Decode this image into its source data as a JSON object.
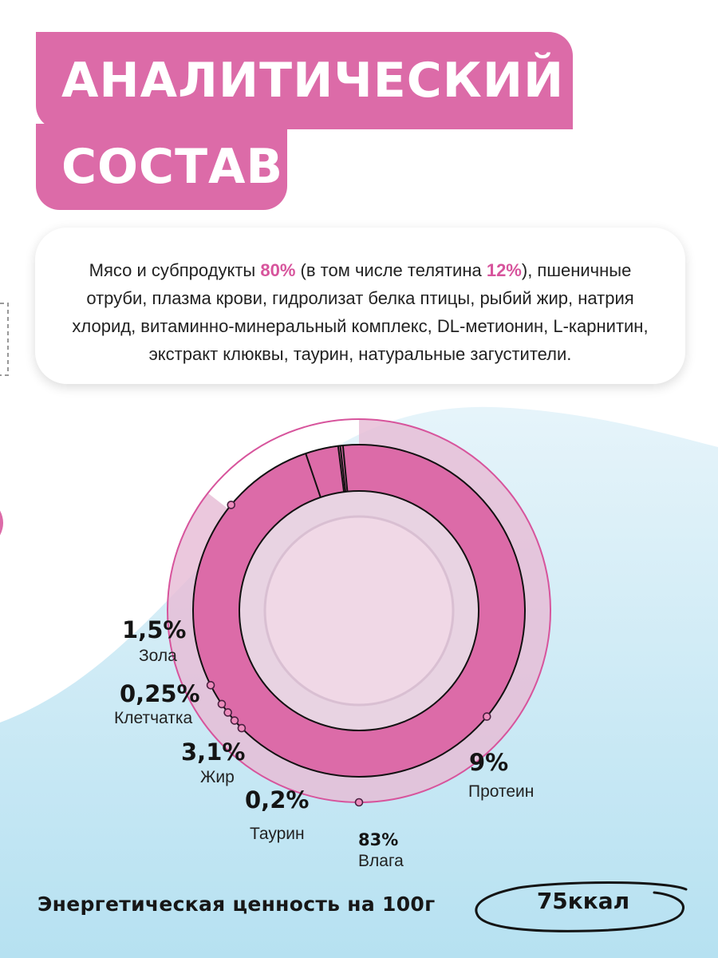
{
  "header": {
    "title_line1": "АНАЛИТИЧЕСКИЙ",
    "title_line2": "СОСТАВ"
  },
  "composition": {
    "lines": [
      {
        "parts": [
          {
            "text": "Мясо и субпродукты "
          },
          {
            "text": "80%",
            "hl": true
          },
          {
            "text": " (в том числе телятина "
          },
          {
            "text": "12%",
            "hl": true
          },
          {
            "text": "), пшеничные"
          }
        ]
      },
      {
        "parts": [
          {
            "text": "отруби, плазма крови, гидролизат белка птицы, рыбий жир, натрия"
          }
        ]
      },
      {
        "parts": [
          {
            "text": "хлорид, витаминно-минеральный комплекс, DL-метионин, L-карнитин,"
          }
        ]
      },
      {
        "parts": [
          {
            "text": "экстракт клюквы, таурин, натуральные загустители."
          }
        ]
      }
    ]
  },
  "chart_data": {
    "type": "pie",
    "series": [
      {
        "name": "Влага",
        "value": 83,
        "label": "83%"
      },
      {
        "name": "Протеин",
        "value": 9,
        "label": "9%"
      },
      {
        "name": "Жир",
        "value": 3.1,
        "label": "3,1%"
      },
      {
        "name": "Таурин",
        "value": 0.2,
        "label": "0,2%"
      },
      {
        "name": "Клетчатка",
        "value": 0.25,
        "label": "0,25%"
      },
      {
        "name": "Зола",
        "value": 1.5,
        "label": "1,5%"
      }
    ]
  },
  "energy": {
    "label": "Энергетическая ценность на 100г",
    "value": "75ккал"
  },
  "colors": {
    "accent": "#dc6ba8",
    "ring": "#dc6ba8",
    "outer": "#e7bcd6",
    "light_blue": "#bde4f2"
  }
}
